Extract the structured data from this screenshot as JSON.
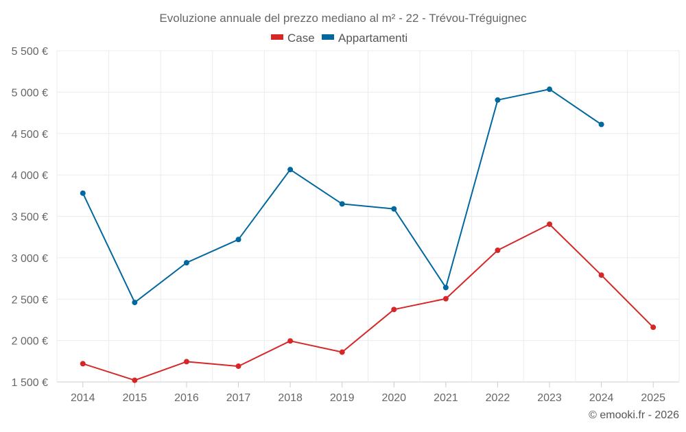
{
  "chart_data": {
    "type": "line",
    "title": "Evoluzione annuale del prezzo mediano al m² - 22 - Trévou-Tréguignec",
    "categories": [
      "2014",
      "2015",
      "2016",
      "2017",
      "2018",
      "2019",
      "2020",
      "2021",
      "2022",
      "2023",
      "2024",
      "2025"
    ],
    "series": [
      {
        "name": "Case",
        "color": "#d62728",
        "values": [
          1720,
          1520,
          1745,
          1690,
          1995,
          1860,
          2375,
          2505,
          3090,
          3405,
          2790,
          2160
        ]
      },
      {
        "name": "Appartamenti",
        "color": "#00679f",
        "values": [
          3780,
          2460,
          2940,
          3220,
          4065,
          3650,
          3590,
          2640,
          4905,
          5035,
          4610,
          null
        ]
      }
    ],
    "ylim": [
      1500,
      5500
    ],
    "yticks": [
      1500,
      2000,
      2500,
      3000,
      3500,
      4000,
      4500,
      5000,
      5500
    ],
    "ytick_labels": [
      "1 500 €",
      "2 000 €",
      "2 500 €",
      "3 000 €",
      "3 500 €",
      "4 000 €",
      "4 500 €",
      "5 000 €",
      "5 500 €"
    ],
    "xlabel": "",
    "ylabel": "",
    "grid": true,
    "legend_position": "top-center",
    "credit": "© emooki.fr - 2026"
  }
}
